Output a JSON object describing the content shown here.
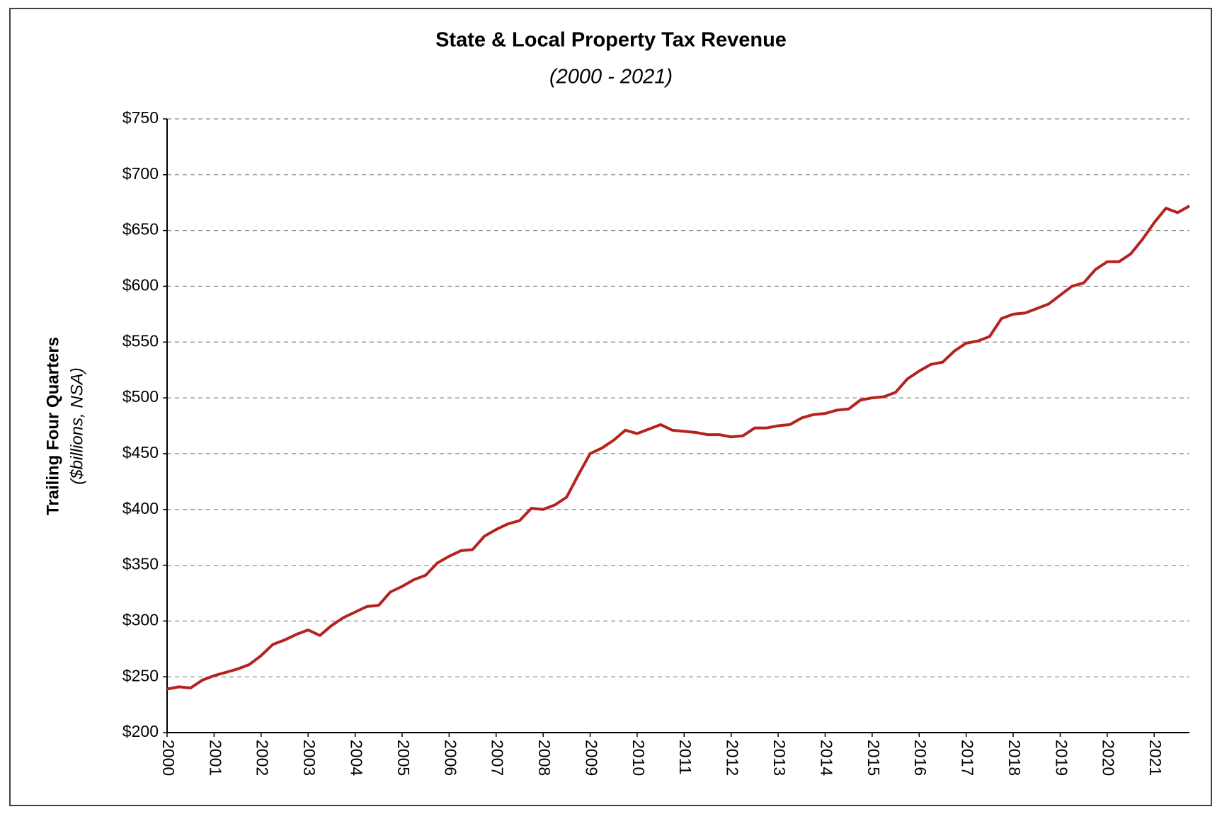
{
  "chart_data": {
    "type": "line",
    "title": "State & Local Property Tax Revenue",
    "subtitle": "(2000 - 2021)",
    "y_label": "Trailing Four Quarters",
    "y_label_sub": "($billions, NSA)",
    "categories": [
      "2000",
      null,
      null,
      null,
      "2001",
      null,
      null,
      null,
      "2002",
      null,
      null,
      null,
      "2003",
      null,
      null,
      null,
      "2004",
      null,
      null,
      null,
      "2005",
      null,
      null,
      null,
      "2006",
      null,
      null,
      null,
      "2007",
      null,
      null,
      null,
      "2008",
      null,
      null,
      null,
      "2009",
      null,
      null,
      null,
      "2010",
      null,
      null,
      null,
      "2011",
      null,
      null,
      null,
      "2012",
      null,
      null,
      null,
      "2013",
      null,
      null,
      null,
      "2014",
      null,
      null,
      null,
      "2015",
      null,
      null,
      null,
      "2016",
      null,
      null,
      null,
      "2017",
      null,
      null,
      null,
      "2018",
      null,
      null,
      null,
      "2019",
      null,
      null,
      null,
      "2020",
      null,
      null,
      null,
      "2021",
      null,
      null,
      null
    ],
    "series": [
      {
        "name": "Property Tax Revenue",
        "color": "#b5231e",
        "values": [
          239,
          241,
          240,
          247,
          251,
          254,
          257,
          261,
          269,
          279,
          283,
          288,
          292,
          287,
          296,
          303,
          308,
          313,
          314,
          326,
          331,
          337,
          341,
          352,
          358,
          363,
          364,
          376,
          382,
          387,
          390,
          401,
          400,
          404,
          411,
          431,
          450,
          455,
          462,
          471,
          468,
          472,
          476,
          471,
          470,
          469,
          467,
          467,
          465,
          466,
          473,
          473,
          475,
          476,
          482,
          485,
          486,
          489,
          490,
          498,
          500,
          501,
          505,
          517,
          524,
          530,
          532,
          542,
          549,
          551,
          555,
          571,
          575,
          576,
          580,
          584,
          592,
          600,
          603,
          615,
          622,
          622,
          629,
          642,
          657,
          670,
          666,
          672
        ]
      }
    ],
    "ylim": [
      200,
      750
    ],
    "yticks": [
      {
        "value": 200,
        "label": "$200"
      },
      {
        "value": 250,
        "label": "$250"
      },
      {
        "value": 300,
        "label": "$300"
      },
      {
        "value": 350,
        "label": "$350"
      },
      {
        "value": 400,
        "label": "$400"
      },
      {
        "value": 450,
        "label": "$450"
      },
      {
        "value": 500,
        "label": "$500"
      },
      {
        "value": 550,
        "label": "$550"
      },
      {
        "value": 600,
        "label": "$600"
      },
      {
        "value": 650,
        "label": "$650"
      },
      {
        "value": 700,
        "label": "$700"
      },
      {
        "value": 750,
        "label": "$750"
      }
    ],
    "grid": true
  }
}
